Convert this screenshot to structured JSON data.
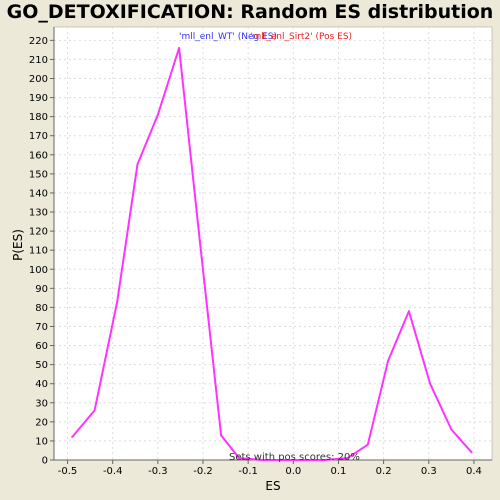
{
  "chart_data": {
    "type": "line",
    "title": "GO_DETOXIFICATION: Random ES distribution",
    "xlabel": "ES",
    "ylabel": "P(ES)",
    "xlim": [
      -0.53,
      0.44
    ],
    "ylim": [
      0,
      227
    ],
    "xticks": [
      -0.5,
      -0.4,
      -0.3,
      -0.2,
      -0.1,
      0.0,
      0.1,
      0.2,
      0.3,
      0.4
    ],
    "xtick_labels": [
      "-0.5",
      "-0.4",
      "-0.3",
      "-0.2",
      "-0.1",
      "0.0",
      "0.1",
      "0.2",
      "0.3",
      "0.4"
    ],
    "yticks": [
      0,
      10,
      20,
      30,
      40,
      50,
      60,
      70,
      80,
      90,
      100,
      110,
      120,
      130,
      140,
      150,
      160,
      170,
      180,
      190,
      200,
      210,
      220
    ],
    "grid": true,
    "legend_position": "top-center",
    "legend": [
      {
        "label": "'mll_enl_WT' (Neg ES)",
        "color": "#3333ee"
      },
      {
        "label": "'mll_enl_Sirt2' (Pos ES)",
        "color": "#ee2222"
      }
    ],
    "annotation": "Sets with pos scores: 20%",
    "series": [
      {
        "color": "#ff33ff",
        "x": [
          -0.49,
          -0.44,
          -0.39,
          -0.345,
          -0.3,
          -0.253,
          -0.207,
          -0.16,
          -0.12,
          -0.07,
          0.0,
          0.07,
          0.12,
          0.165,
          0.21,
          0.256,
          0.303,
          0.35,
          0.395
        ],
        "y": [
          12,
          26,
          83,
          155,
          181,
          216,
          115,
          13,
          1,
          0,
          0,
          0,
          1,
          8,
          52,
          78,
          40,
          16,
          4
        ]
      }
    ]
  }
}
